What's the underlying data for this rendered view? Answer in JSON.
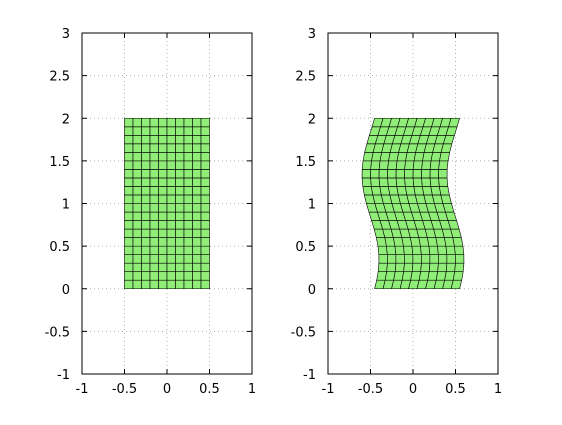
{
  "chart_data": [
    {
      "type": "mesh",
      "grid": true,
      "xlim": [
        -1,
        1
      ],
      "ylim": [
        -1,
        3
      ],
      "xticks": [
        "-1",
        "-0.5",
        "0",
        "0.5",
        "1"
      ],
      "yticks": [
        "-1",
        "-0.5",
        "0",
        "0.5",
        "1",
        "1.5",
        "2",
        "2.5",
        "3"
      ],
      "mesh": {
        "x_range": [
          -0.5,
          0.5
        ],
        "y_range": [
          0,
          2
        ],
        "cols": 10,
        "rows": 20,
        "fill": "#90ee78",
        "edge": "#000000",
        "warp": {
          "amplitude": 0,
          "frequency": 0,
          "phase": 0
        }
      }
    },
    {
      "type": "mesh",
      "grid": true,
      "xlim": [
        -1,
        1
      ],
      "ylim": [
        -1,
        3
      ],
      "xticks": [
        "-1",
        "-0.5",
        "0",
        "0.5",
        "1"
      ],
      "yticks": [
        "-1",
        "-0.5",
        "0",
        "0.5",
        "1",
        "1.5",
        "2",
        "2.5",
        "3"
      ],
      "mesh": {
        "x_range": [
          -0.5,
          0.5
        ],
        "y_range": [
          0,
          2
        ],
        "cols": 10,
        "rows": 20,
        "fill": "#90ee78",
        "edge": "#000000",
        "warp": {
          "amplitude": 0.1,
          "frequency": 3.1416,
          "phase": 0.5
        }
      }
    }
  ]
}
